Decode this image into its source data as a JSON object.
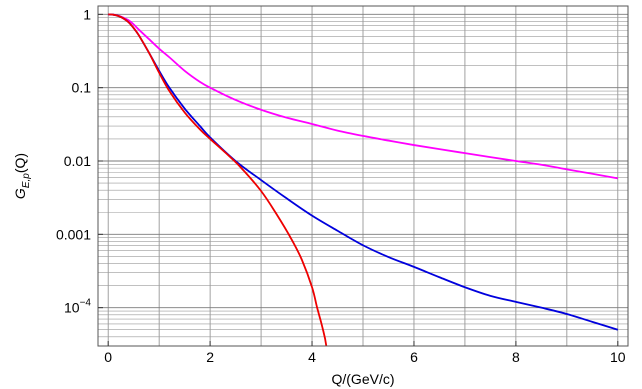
{
  "chart_data": {
    "type": "line",
    "xlabel": "Q/(GeV/c)",
    "ylabel": {
      "base": "G",
      "sub": "E,p",
      "arg": "(Q)"
    },
    "xlim": [
      -0.2,
      10.2
    ],
    "ylim": [
      3e-05,
      1.3
    ],
    "y_scale": "log",
    "grid": true,
    "x_ticks": [
      {
        "value": 0,
        "label": "0"
      },
      {
        "value": 2,
        "label": "2"
      },
      {
        "value": 4,
        "label": "4"
      },
      {
        "value": 6,
        "label": "6"
      },
      {
        "value": 8,
        "label": "8"
      },
      {
        "value": 10,
        "label": "10"
      }
    ],
    "y_ticks": [
      {
        "value": 1,
        "label": "1"
      },
      {
        "value": 0.1,
        "label": "0.1"
      },
      {
        "value": 0.01,
        "label": "0.01"
      },
      {
        "value": 0.001,
        "label": "0.001"
      },
      {
        "value": 0.0001,
        "label": "10",
        "sup": "−4"
      }
    ],
    "series": [
      {
        "color": "#ff00ff",
        "x": [
          0,
          0.1,
          0.2,
          0.3,
          0.4,
          0.5,
          0.6,
          0.8,
          1.0,
          1.2,
          1.5,
          1.8,
          2.0,
          2.5,
          3.0,
          3.5,
          4.0,
          4.5,
          5.0,
          5.5,
          6.0,
          6.5,
          7.0,
          7.5,
          8.0,
          8.5,
          9.0,
          9.5,
          10.0
        ],
        "y": [
          1,
          0.99,
          0.96,
          0.9,
          0.83,
          0.73,
          0.62,
          0.46,
          0.34,
          0.26,
          0.17,
          0.12,
          0.1,
          0.068,
          0.05,
          0.039,
          0.032,
          0.026,
          0.022,
          0.019,
          0.0165,
          0.0145,
          0.0128,
          0.0113,
          0.01,
          0.0089,
          0.0077,
          0.0067,
          0.0058
        ]
      },
      {
        "color": "#0000dd",
        "x": [
          0,
          0.1,
          0.2,
          0.3,
          0.4,
          0.5,
          0.6,
          0.8,
          1.0,
          1.2,
          1.5,
          1.8,
          2.0,
          2.5,
          3.0,
          3.5,
          4.0,
          4.5,
          5.0,
          5.5,
          6.0,
          6.5,
          7.0,
          7.5,
          8.0,
          8.5,
          9.0,
          9.5,
          10.0
        ],
        "y": [
          1,
          0.99,
          0.95,
          0.88,
          0.78,
          0.65,
          0.52,
          0.3,
          0.17,
          0.1,
          0.052,
          0.03,
          0.021,
          0.01,
          0.0055,
          0.0031,
          0.0018,
          0.00112,
          0.00071,
          0.00049,
          0.00036,
          0.00026,
          0.00019,
          0.000145,
          0.00012,
          0.0001,
          8.2e-05,
          6.4e-05,
          5e-05
        ]
      },
      {
        "color": "#ee0000",
        "x": [
          0,
          0.1,
          0.2,
          0.3,
          0.4,
          0.5,
          0.6,
          0.8,
          1.0,
          1.2,
          1.5,
          1.8,
          2.0,
          2.3,
          2.6,
          3.0,
          3.3,
          3.6,
          3.8,
          4.0,
          4.1,
          4.2,
          4.28,
          4.34
        ],
        "y": [
          1,
          0.99,
          0.95,
          0.88,
          0.78,
          0.65,
          0.52,
          0.3,
          0.16,
          0.09,
          0.046,
          0.027,
          0.02,
          0.013,
          0.0082,
          0.0039,
          0.0019,
          0.00085,
          0.00045,
          0.00019,
          0.0001,
          5.5e-05,
          3e-05,
          1e-05
        ]
      }
    ]
  }
}
